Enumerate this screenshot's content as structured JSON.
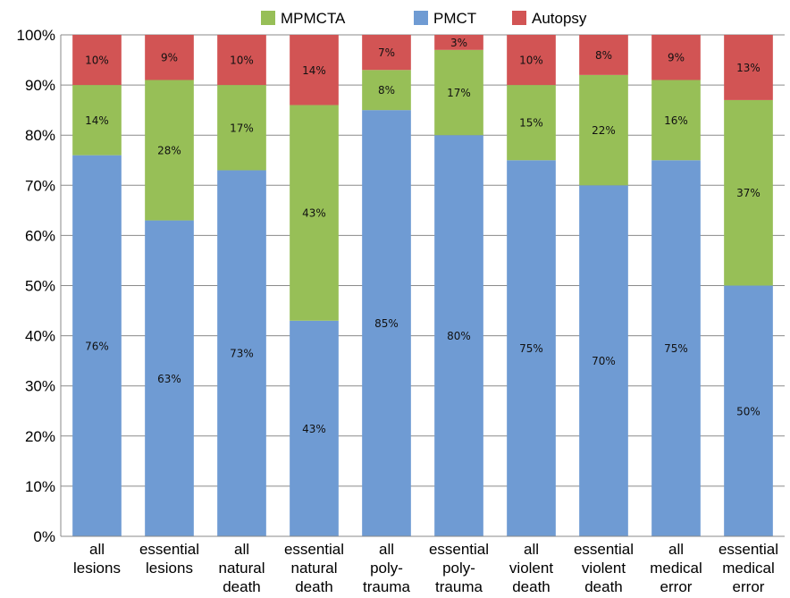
{
  "chart_data": {
    "type": "bar",
    "stacked": true,
    "percent_stacked": true,
    "categories": [
      [
        "all",
        "lesions"
      ],
      [
        "essential",
        "lesions"
      ],
      [
        "all",
        "natural",
        "death"
      ],
      [
        "essential",
        "natural",
        "death"
      ],
      [
        "all",
        "poly-",
        "trauma"
      ],
      [
        "essential",
        "poly-",
        "trauma"
      ],
      [
        "all",
        "violent",
        "death"
      ],
      [
        "essential",
        "violent",
        "death"
      ],
      [
        "all",
        "medical",
        "error"
      ],
      [
        "essential",
        "medical",
        "error"
      ]
    ],
    "series": [
      {
        "name": "PMCT",
        "color": "#6f9bd3",
        "values": [
          76,
          63,
          73,
          43,
          85,
          80,
          75,
          70,
          75,
          50
        ],
        "labels": [
          "76%",
          "63%",
          "73%",
          "43%",
          "85%",
          "80%",
          "75%",
          "70%",
          "75%",
          "50%"
        ]
      },
      {
        "name": "MPMCTA",
        "color": "#97bf57",
        "values": [
          14,
          28,
          17,
          43,
          8,
          17,
          15,
          22,
          16,
          37
        ],
        "labels": [
          "14%",
          "28%",
          "17%",
          "43%",
          "8%",
          "17%",
          "15%",
          "22%",
          "16%",
          "37%"
        ]
      },
      {
        "name": "Autopsy",
        "color": "#d25454",
        "values": [
          10,
          9,
          10,
          14,
          7,
          3,
          10,
          8,
          9,
          13
        ],
        "labels": [
          "10%",
          "9%",
          "10%",
          "14%",
          "7%",
          "3%",
          "10%",
          "8%",
          "9%",
          "13%"
        ]
      }
    ],
    "legend": {
      "position": "top",
      "order": [
        "MPMCTA",
        "PMCT",
        "Autopsy"
      ]
    },
    "y_ticks": [
      "0%",
      "10%",
      "20%",
      "30%",
      "40%",
      "50%",
      "60%",
      "70%",
      "80%",
      "90%",
      "100%"
    ],
    "ylim": [
      0,
      100
    ],
    "grid": true,
    "title": "",
    "xlabel": "",
    "ylabel": ""
  }
}
